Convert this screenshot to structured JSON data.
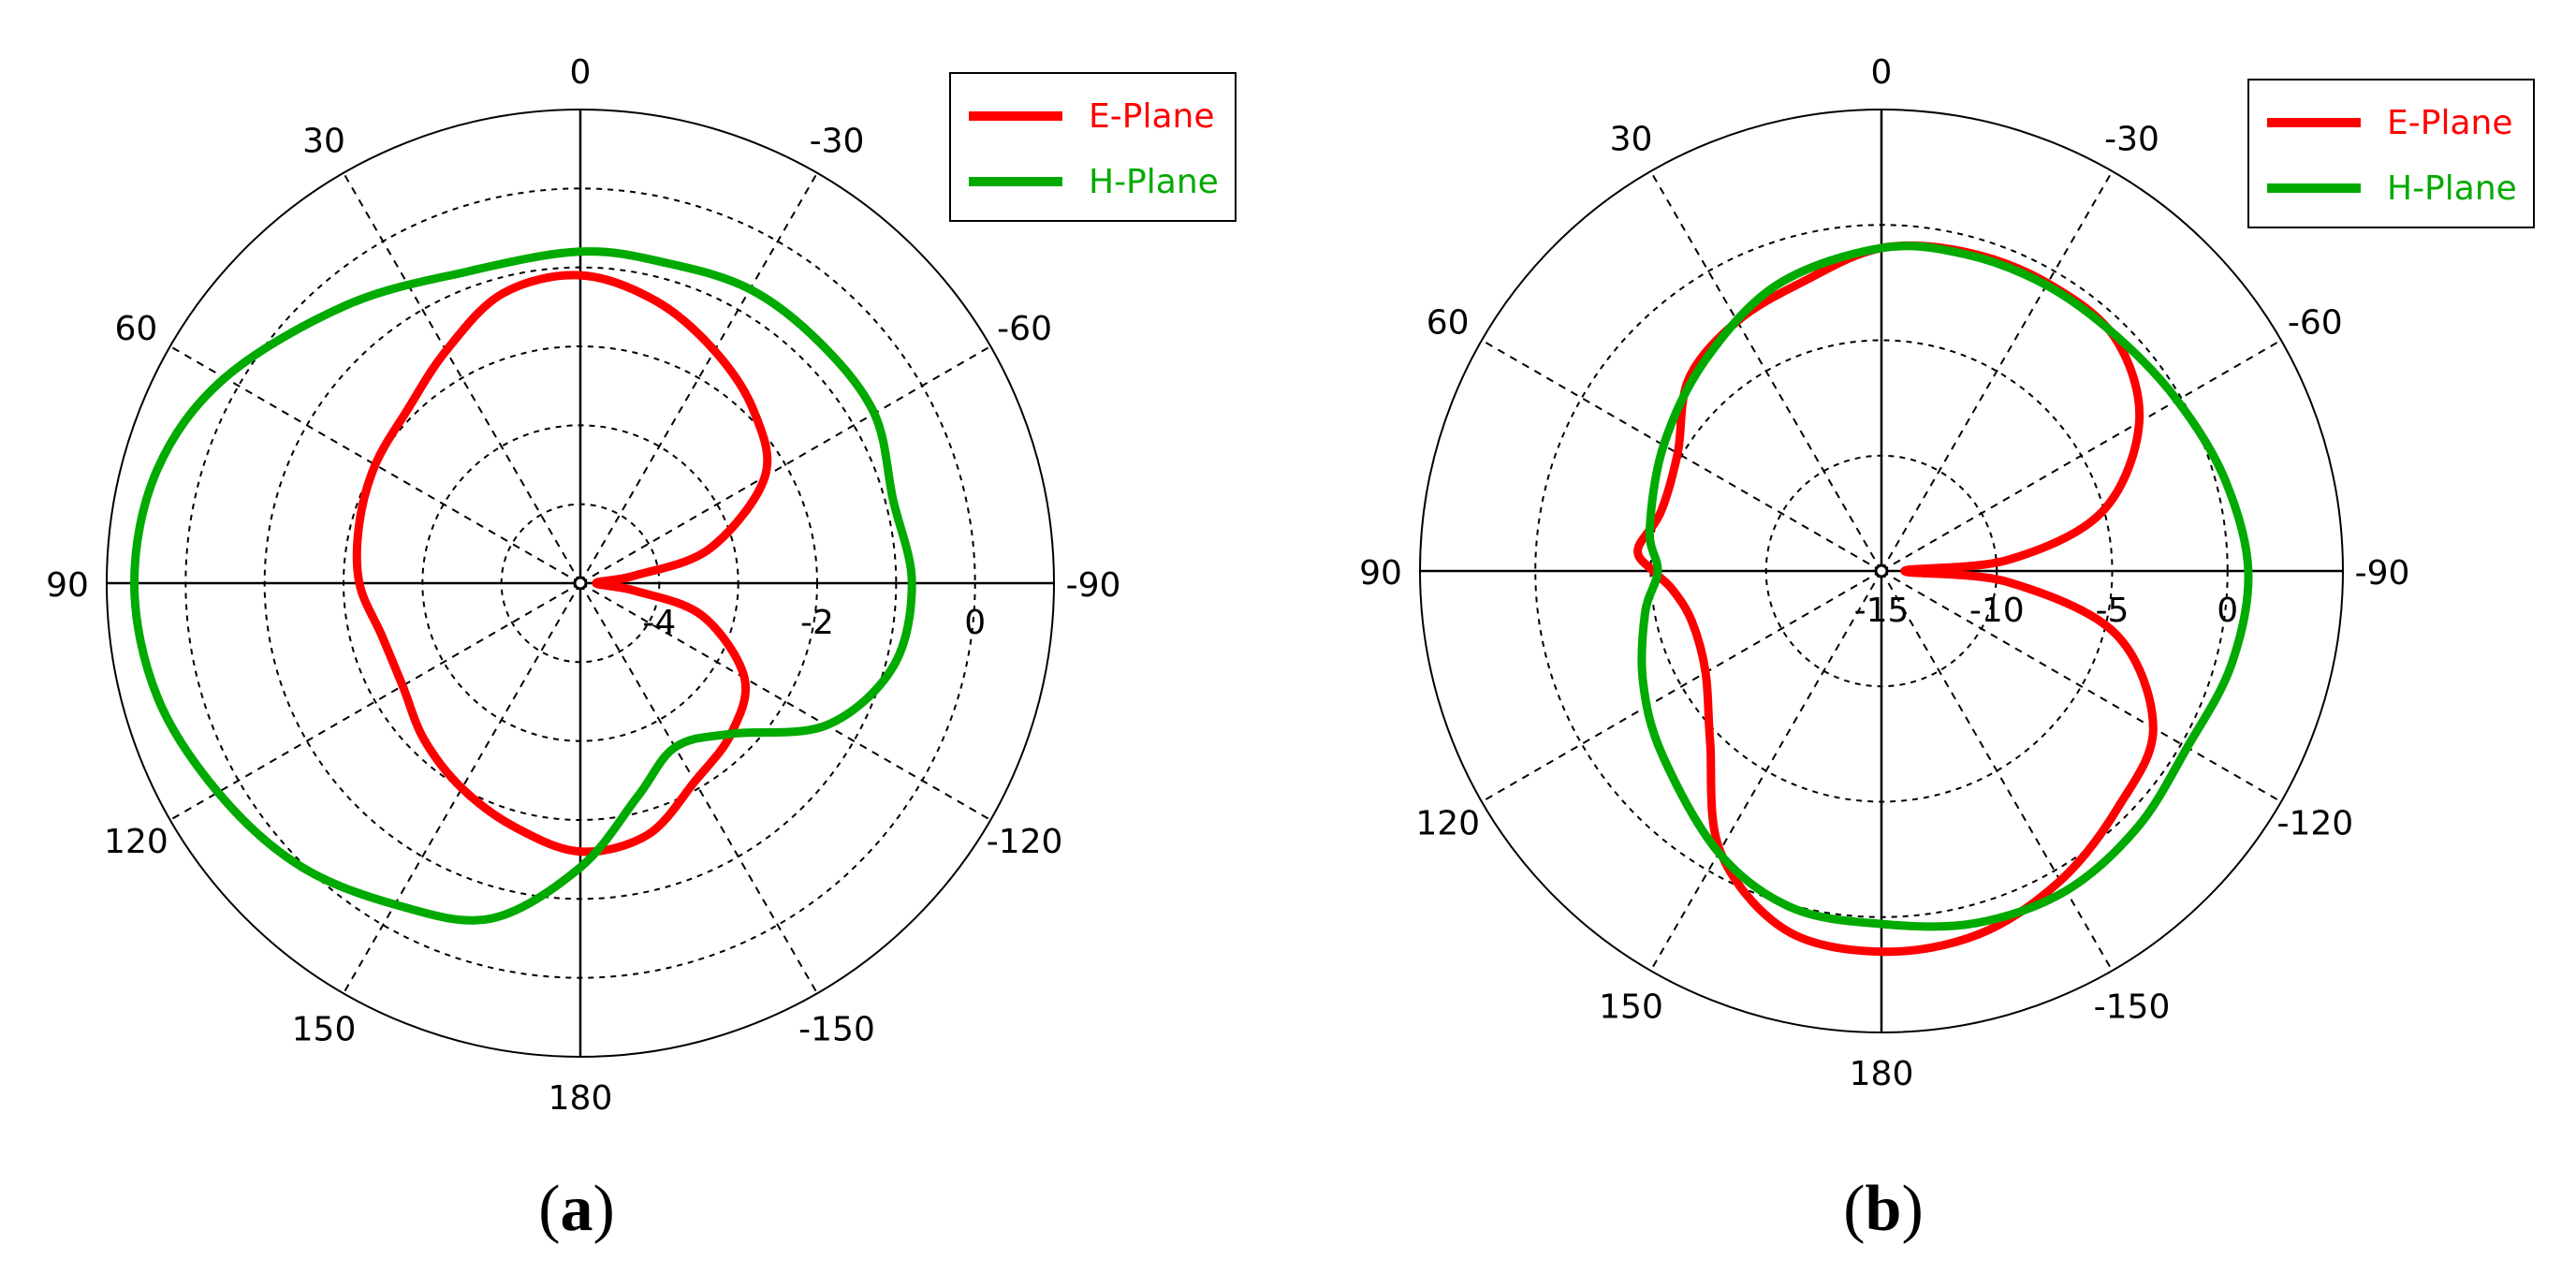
{
  "chart_data": [
    {
      "type": "polar-line",
      "panel_label": "a",
      "angle_labels": [
        {
          "angle": 0,
          "text": "0"
        },
        {
          "angle": 30,
          "text": "30"
        },
        {
          "angle": 60,
          "text": "60"
        },
        {
          "angle": 90,
          "text": "90"
        },
        {
          "angle": 120,
          "text": "120"
        },
        {
          "angle": 150,
          "text": "150"
        },
        {
          "angle": 180,
          "text": "180"
        },
        {
          "angle": 210,
          "text": "-150"
        },
        {
          "angle": 240,
          "text": "-120"
        },
        {
          "angle": 270,
          "text": "-90"
        },
        {
          "angle": 300,
          "text": "-60"
        },
        {
          "angle": 330,
          "text": "-30"
        }
      ],
      "radial_range": [
        -5,
        1
      ],
      "radial_rings": [
        -4,
        -3,
        -2,
        -1,
        0,
        1
      ],
      "radial_labels": [
        "-4",
        "-2",
        "0"
      ],
      "radial_label_values": [
        -4,
        -2,
        0
      ],
      "legend_position": "top-right",
      "series": [
        {
          "name": "E-Plane",
          "color": "#ff0000",
          "angles": [
            0,
            15,
            30,
            45,
            60,
            75,
            90,
            105,
            120,
            135,
            150,
            165,
            180,
            195,
            210,
            225,
            240,
            255,
            262,
            270,
            278,
            285,
            300,
            315,
            330,
            345,
            360
          ],
          "values": [
            -1.1,
            -1.2,
            -1.6,
            -1.9,
            -2.0,
            -2.1,
            -2.2,
            -2.4,
            -2.4,
            -2.2,
            -2.0,
            -1.8,
            -1.6,
            -1.7,
            -2.1,
            -2.3,
            -2.6,
            -3.4,
            -4.3,
            -4.8,
            -4.3,
            -3.3,
            -2.3,
            -1.9,
            -1.6,
            -1.3,
            -1.1
          ]
        },
        {
          "name": "H-Plane",
          "color": "#00aa00",
          "angles": [
            0,
            20,
            40,
            60,
            75,
            90,
            105,
            120,
            135,
            150,
            165,
            180,
            195,
            210,
            225,
            240,
            255,
            270,
            285,
            300,
            315,
            330,
            345,
            360
          ],
          "values": [
            -0.8,
            -0.8,
            -0.4,
            0.2,
            0.55,
            0.65,
            0.55,
            0.3,
            0.05,
            -0.3,
            -0.6,
            -1.4,
            -2.2,
            -2.6,
            -2.3,
            -1.4,
            -0.9,
            -0.8,
            -0.9,
            -0.7,
            -0.7,
            -0.7,
            -0.8,
            -0.8
          ]
        }
      ]
    },
    {
      "type": "polar-line",
      "panel_label": "b",
      "angle_labels": [
        {
          "angle": 0,
          "text": "0"
        },
        {
          "angle": 30,
          "text": "30"
        },
        {
          "angle": 60,
          "text": "60"
        },
        {
          "angle": 90,
          "text": "90"
        },
        {
          "angle": 120,
          "text": "120"
        },
        {
          "angle": 150,
          "text": "150"
        },
        {
          "angle": 180,
          "text": "180"
        },
        {
          "angle": 210,
          "text": "-150"
        },
        {
          "angle": 240,
          "text": "-120"
        },
        {
          "angle": 270,
          "text": "-90"
        },
        {
          "angle": 300,
          "text": "-60"
        },
        {
          "angle": 330,
          "text": "-30"
        }
      ],
      "radial_range": [
        -15,
        5
      ],
      "radial_rings": [
        -10,
        -5,
        0,
        5
      ],
      "radial_labels": [
        "-15",
        "-10",
        "-5",
        "0"
      ],
      "radial_label_values": [
        -15,
        -10,
        -5,
        0
      ],
      "legend_position": "top-right",
      "series": [
        {
          "name": "E-Plane",
          "color": "#ff0000",
          "angles": [
            0,
            15,
            30,
            45,
            60,
            75,
            85,
            90,
            95,
            105,
            120,
            135,
            150,
            165,
            180,
            195,
            210,
            225,
            240,
            255,
            265,
            270,
            275,
            285,
            300,
            315,
            330,
            345,
            360
          ],
          "values": [
            -1,
            -2,
            -2.5,
            -3.2,
            -4.8,
            -5.1,
            -4.4,
            -5.1,
            -5.9,
            -6.5,
            -6.2,
            -4.5,
            -1.0,
            1.1,
            1.5,
            1.3,
            0.5,
            -0.5,
            -1.4,
            -4.5,
            -9.5,
            -14,
            -9.5,
            -5.1,
            -2.1,
            -0.7,
            -0.6,
            -0.7,
            -1
          ]
        },
        {
          "name": "H-Plane",
          "color": "#00aa00",
          "angles": [
            0,
            20,
            40,
            60,
            80,
            90,
            100,
            115,
            130,
            150,
            165,
            180,
            195,
            210,
            225,
            240,
            255,
            270,
            285,
            300,
            315,
            330,
            345,
            360
          ],
          "values": [
            -1.0,
            -1.8,
            -3.1,
            -4.1,
            -4.8,
            -5.3,
            -4.6,
            -3.6,
            -2.6,
            -0.9,
            0.1,
            0.3,
            0.8,
            1.0,
            0.7,
            0.3,
            0.7,
            0.9,
            0.4,
            -0.2,
            -0.6,
            -0.7,
            -0.8,
            -1.0
          ]
        }
      ]
    }
  ]
}
